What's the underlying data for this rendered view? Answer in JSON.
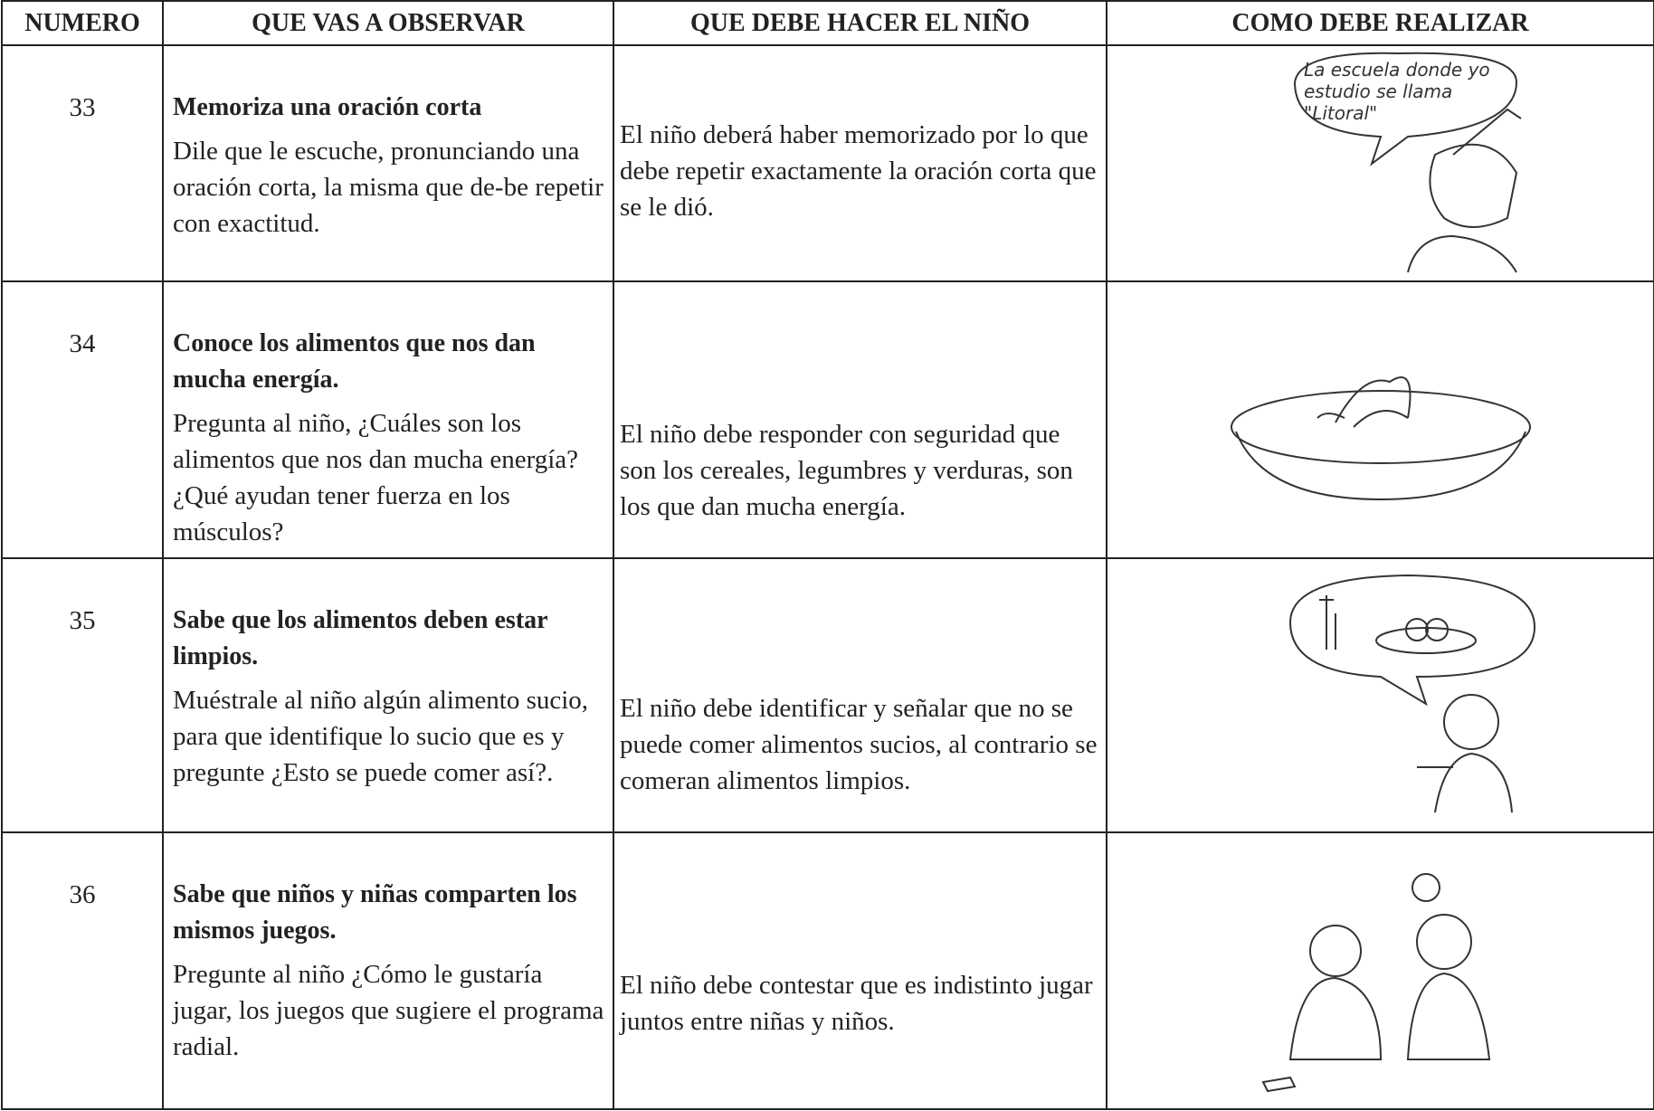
{
  "header": {
    "columns": [
      "NUMERO",
      "QUE VAS A OBSERVAR",
      "QUE DEBE HACER EL NIÑO",
      "COMO DEBE REALIZAR"
    ]
  },
  "rows": [
    {
      "number": "33",
      "title": "Memoriza una oración corta",
      "instruction": "Dile que le escuche, pronunciando una oración corta, la misma que de-be repetir con exactitud.",
      "expected": "El niño deberá haber memorizado por lo que debe repetir exactamente la oración corta  que se le dió.",
      "bubble": "La escuela donde yo estudio se llama \"Litoral\""
    },
    {
      "number": "34",
      "title": "Conoce los alimentos que nos dan  mucha energía.",
      "instruction": "Pregunta al niño, ¿Cuáles son los alimentos que nos dan mucha energía? ¿Qué ayudan tener fuerza en los músculos?",
      "expected": "El niño debe responder con seguridad que son los cereales, legumbres y verduras, son los que dan mucha energía."
    },
    {
      "number": "35",
      "title": "Sabe que los alimentos deben estar limpios.",
      "instruction": "Muéstrale al niño algún alimento sucio, para que identifique  lo sucio que es y pregunte ¿Esto se puede comer así?.",
      "expected": "El niño debe identificar  y señalar que no se puede comer alimentos sucios, al contrario se comeran alimentos limpios."
    },
    {
      "number": "36",
      "title": "Sabe que niños y niñas comparten los mismos juegos.",
      "instruction": "Pregunte al niño ¿Cómo le gustaría jugar, los juegos que sugiere el programa radial.",
      "expected": "El niño debe contestar que es indistinto jugar juntos entre niñas y niños."
    }
  ]
}
